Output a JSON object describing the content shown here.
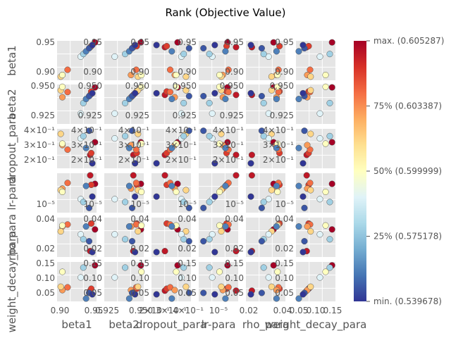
{
  "chart_data": {
    "type": "scatter",
    "title": "Rank (Objective Value)",
    "params": [
      "beta1",
      "beta2",
      "dropout_para",
      "lr-para",
      "rho_para",
      "weight_decay_para"
    ],
    "axis_labels": [
      "beta1",
      "beta2",
      "dropout_para",
      "lr-para",
      "rho_para",
      "weight_decay_para"
    ],
    "axis_ranges": [
      [
        0.895,
        0.97
      ],
      [
        0.902,
        0.97
      ],
      [
        0.14,
        0.4
      ],
      [
        1e-06,
        3e-05
      ],
      [
        0.012,
        0.052
      ],
      [
        0.02,
        0.16
      ]
    ],
    "log_axes": [
      false,
      false,
      true,
      true,
      false,
      false
    ],
    "grid": true,
    "ticks": {
      "beta1": [
        "0.90",
        "0.95"
      ],
      "beta2": [
        "0.925",
        "0.950"
      ],
      "dropout_para": [
        "2×10⁻¹",
        "3×10⁻¹",
        "4×10⁻¹"
      ],
      "lr-para": [
        "10⁻⁵"
      ],
      "rho_para": [
        "0.02",
        "0.04"
      ],
      "weight_decay_para": [
        "0.05",
        "0.10",
        "0.15"
      ]
    },
    "points": [
      {
        "beta1": 0.967,
        "beta2": 0.965,
        "dropout_para": 0.28,
        "lr-para": 1.2e-05,
        "rho_para": 0.04,
        "weight_decay_para": 0.148,
        "rank": 1.0
      },
      {
        "beta1": 0.958,
        "beta2": 0.952,
        "dropout_para": 0.2,
        "lr-para": 2.5e-05,
        "rho_para": 0.018,
        "weight_decay_para": 0.058,
        "rank": 0.95
      },
      {
        "beta1": 0.96,
        "beta2": 0.958,
        "dropout_para": 0.21,
        "lr-para": 1.1e-05,
        "rho_para": 0.046,
        "weight_decay_para": 0.065,
        "rank": 0.88
      },
      {
        "beta1": 0.915,
        "beta2": 0.957,
        "dropout_para": 0.23,
        "lr-para": 1.3e-05,
        "rho_para": 0.045,
        "weight_decay_para": 0.07,
        "rank": 0.8
      },
      {
        "beta1": 0.905,
        "beta2": 0.948,
        "dropout_para": 0.26,
        "lr-para": 8e-06,
        "rho_para": 0.043,
        "weight_decay_para": 0.06,
        "rank": 0.73
      },
      {
        "beta1": 0.902,
        "beta2": 0.96,
        "dropout_para": 0.35,
        "lr-para": 7e-06,
        "rho_para": 0.038,
        "weight_decay_para": 0.072,
        "rank": 0.62
      },
      {
        "beta1": 0.905,
        "beta2": 0.966,
        "dropout_para": 0.27,
        "lr-para": 6e-06,
        "rho_para": 0.044,
        "weight_decay_para": 0.125,
        "rank": 0.5
      },
      {
        "beta1": 0.94,
        "beta2": 0.92,
        "dropout_para": 0.31,
        "lr-para": 3.2e-06,
        "rho_para": 0.035,
        "weight_decay_para": 0.105,
        "rank": 0.4
      },
      {
        "beta1": 0.945,
        "beta2": 0.938,
        "dropout_para": 0.33,
        "lr-para": 2.5e-06,
        "rho_para": 0.03,
        "weight_decay_para": 0.14,
        "rank": 0.28
      },
      {
        "beta1": 0.95,
        "beta2": 0.945,
        "dropout_para": 0.24,
        "lr-para": 1e-05,
        "rho_para": 0.043,
        "weight_decay_para": 0.03,
        "rank": 0.12
      },
      {
        "beta1": 0.956,
        "beta2": 0.95,
        "dropout_para": 0.38,
        "lr-para": 1.5e-06,
        "rho_para": 0.028,
        "weight_decay_para": 0.05,
        "rank": 0.05
      },
      {
        "beta1": 0.962,
        "beta2": 0.955,
        "dropout_para": 0.16,
        "lr-para": 4e-06,
        "rho_para": 0.017,
        "weight_decay_para": 0.045,
        "rank": 0.0
      }
    ],
    "colorbar": {
      "colors": [
        "#313695",
        "#4575b4",
        "#74add1",
        "#abd9e9",
        "#e0f3f8",
        "#ffffbf",
        "#fee090",
        "#fdae61",
        "#f46d43",
        "#d73027",
        "#a50026"
      ],
      "tick_labels": [
        "max. (0.605287)",
        "75% (0.603387)",
        "50% (0.599999)",
        "25% (0.575178)",
        "min. (0.539678)"
      ]
    }
  }
}
